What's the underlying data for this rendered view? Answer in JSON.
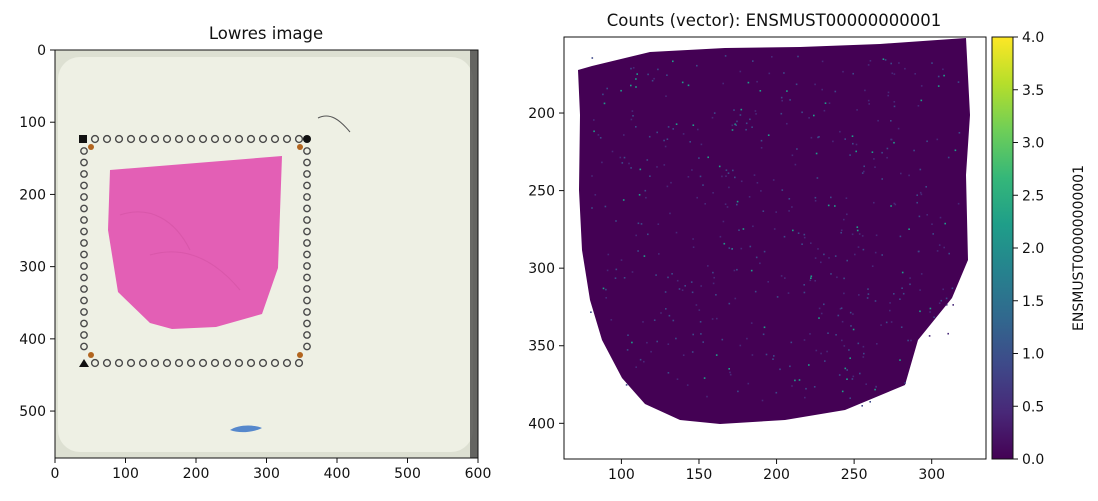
{
  "chart_data": [
    {
      "type": "image",
      "title": "Lowres image",
      "xlim": [
        0,
        600
      ],
      "ylim": [
        565,
        0
      ],
      "x_ticks": [
        0,
        100,
        200,
        300,
        400,
        500,
        600
      ],
      "y_ticks": [
        0,
        100,
        200,
        300,
        400,
        500
      ],
      "tissue_color": "#e35fb5",
      "slide_color": "#eef0e4",
      "fiducial_color": "#4a4a4a",
      "marker_color": "#b2651f"
    },
    {
      "type": "heatmap",
      "title": "Counts (vector): ENSMUST00000000001",
      "xlim": [
        63,
        335
      ],
      "ylim": [
        423,
        151
      ],
      "x_ticks": [
        100,
        150,
        200,
        250,
        300
      ],
      "y_ticks": [
        200,
        250,
        300,
        350,
        400
      ],
      "colorbar": {
        "label": "ENSMUST00000000001",
        "range": [
          0.0,
          4.0
        ],
        "ticks": [
          "0.0",
          "0.5",
          "1.0",
          "1.5",
          "2.0",
          "2.5",
          "3.0",
          "3.5",
          "4.0"
        ],
        "colormap": [
          "#440154",
          "#482878",
          "#3e4989",
          "#31688e",
          "#26828e",
          "#1f9e89",
          "#35b779",
          "#6ece58",
          "#b5de2b",
          "#fde725"
        ]
      },
      "background_value": 0.0
    }
  ]
}
